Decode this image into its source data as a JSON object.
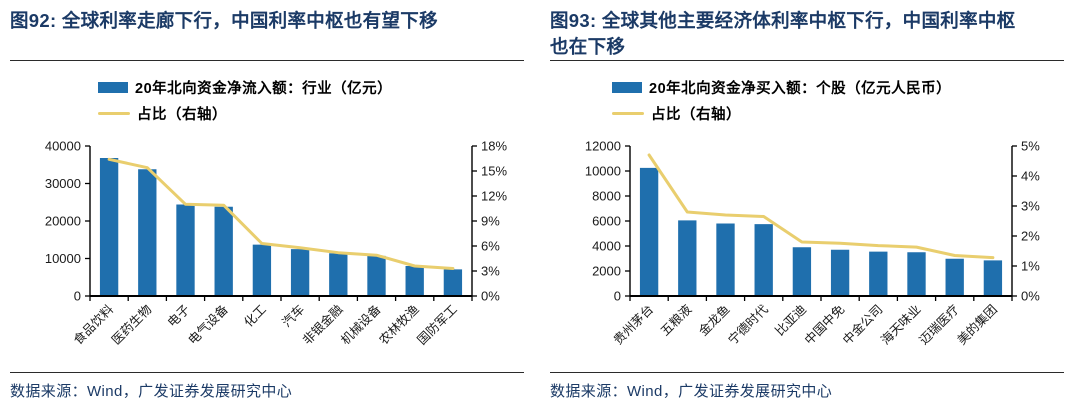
{
  "colors": {
    "title": "#1B3A66",
    "source": "#1B3A66",
    "text": "#000000",
    "rule": "#2B2B2B",
    "bar": "#1F6FAD",
    "line": "#E9CE6E",
    "axis": "#000000",
    "axis_text": "#1A1A1A"
  },
  "figures": [
    {
      "title": "图92: 全球利率走廊下行，中国利率中枢也有望下移",
      "legend": [
        {
          "swatch": "bar",
          "label": "20年北向资金净流入额：行业（亿元）"
        },
        {
          "swatch": "line",
          "label": "占比（右轴）"
        }
      ],
      "source": "数据来源：Wind，广发证券发展研究中心",
      "chart_data": {
        "type": "bar",
        "categories": [
          "食品饮料",
          "医药生物",
          "电子",
          "电气设备",
          "化工",
          "汽车",
          "非银金融",
          "机械设备",
          "农林牧渔",
          "国防军工"
        ],
        "series": [
          {
            "name": "20年北向资金净流入额：行业（亿元）",
            "type": "bar",
            "axis": "left",
            "values": [
              36800,
              33800,
              24400,
              23800,
              13700,
              12500,
              11400,
              10700,
              8000,
              7100
            ]
          },
          {
            "name": "占比（右轴）",
            "type": "line",
            "axis": "right",
            "values": [
              16.4,
              15.4,
              11.0,
              10.9,
              6.3,
              5.8,
              5.2,
              4.9,
              3.6,
              3.3
            ]
          }
        ],
        "left_axis": {
          "min": 0,
          "max": 40000,
          "tick_labels": [
            "0",
            "10000",
            "20000",
            "30000",
            "40000"
          ]
        },
        "right_axis": {
          "min": 0,
          "max": 18,
          "tick_labels": [
            "0%",
            "3%",
            "6%",
            "9%",
            "12%",
            "15%",
            "18%"
          ]
        },
        "grid": false,
        "legend_position": "top"
      }
    },
    {
      "title": "图93: 全球其他主要经济体利率中枢下行，中国利率中枢也在下移",
      "legend": [
        {
          "swatch": "bar",
          "label": "20年北向资金净买入额：个股（亿元人民币）"
        },
        {
          "swatch": "line",
          "label": "占比（右轴）"
        }
      ],
      "source": "数据来源：Wind，广发证券发展研究中心",
      "chart_data": {
        "type": "bar",
        "categories": [
          "贵州茅台",
          "五粮液",
          "金龙鱼",
          "宁德时代",
          "比亚迪",
          "中国中免",
          "中金公司",
          "海天味业",
          "迈瑞医疗",
          "美的集团"
        ],
        "series": [
          {
            "name": "20年北向资金净买入额：个股（亿元人民币）",
            "type": "bar",
            "axis": "left",
            "values": [
              10250,
              6050,
              5800,
              5750,
              3900,
              3700,
              3550,
              3500,
              2980,
              2850
            ]
          },
          {
            "name": "占比（右轴）",
            "type": "line",
            "axis": "right",
            "values": [
              4.7,
              2.8,
              2.7,
              2.65,
              1.8,
              1.76,
              1.68,
              1.63,
              1.35,
              1.28
            ]
          }
        ],
        "left_axis": {
          "min": 0,
          "max": 12000,
          "tick_labels": [
            "0",
            "2000",
            "4000",
            "6000",
            "8000",
            "10000",
            "12000"
          ]
        },
        "right_axis": {
          "min": 0,
          "max": 5,
          "tick_labels": [
            "0%",
            "1%",
            "2%",
            "3%",
            "4%",
            "5%"
          ]
        },
        "grid": false,
        "legend_position": "top"
      }
    }
  ]
}
